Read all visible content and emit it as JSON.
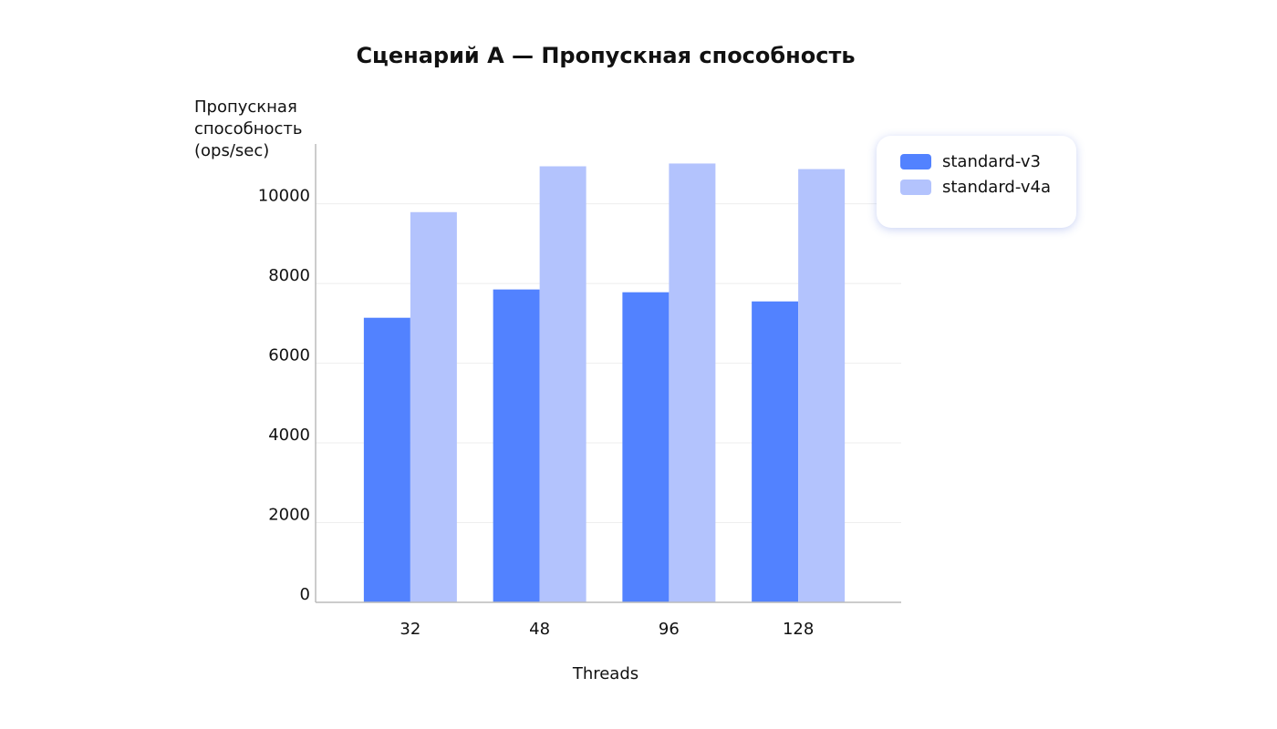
{
  "chart_data": {
    "type": "bar",
    "title": "Сценарий A — Пропускная способность",
    "x_label": "Threads",
    "y_label": "Пропускная способность (ops/sec)",
    "categories": [
      "32",
      "48",
      "96",
      "128"
    ],
    "series": [
      {
        "name": "standard-v3",
        "color": "#5282ff",
        "values": [
          7140,
          7850,
          7780,
          7550
        ]
      },
      {
        "name": "standard-v4a",
        "color": "#b3c3fd",
        "values": [
          9790,
          10940,
          11010,
          10870
        ]
      }
    ],
    "ylim": [
      0,
      11500
    ],
    "yticks": [
      0,
      2000,
      4000,
      6000,
      8000,
      10000
    ],
    "grid": true
  }
}
